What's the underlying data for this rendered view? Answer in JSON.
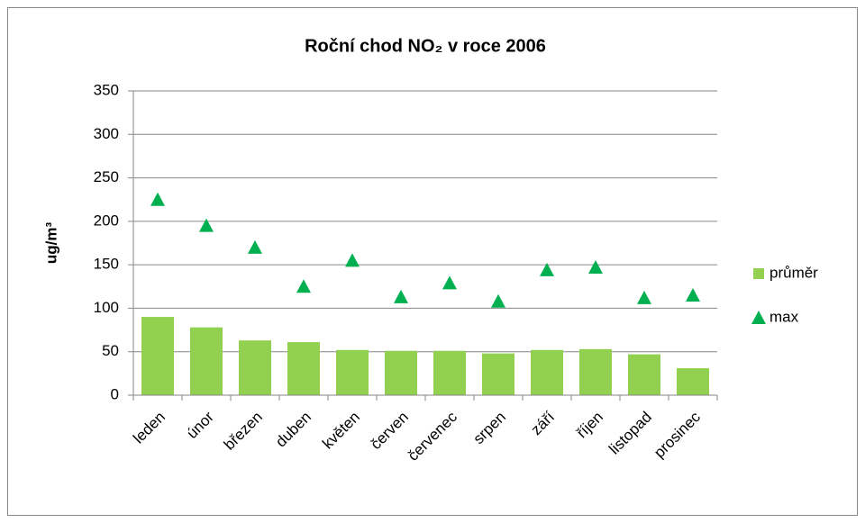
{
  "chart_data": {
    "type": "bar",
    "title": "Roční chod NO₂ v roce 2006",
    "y_label": "ug/m³",
    "categories": [
      "leden",
      "únor",
      "březen",
      "duben",
      "květen",
      "červen",
      "červenec",
      "srpen",
      "září",
      "říjen",
      "listopad",
      "prosinec"
    ],
    "series": [
      {
        "name": "průměr",
        "type": "bar",
        "color": "#92d050",
        "values": [
          90,
          78,
          63,
          61,
          52,
          51,
          51,
          48,
          52,
          53,
          47,
          31
        ]
      },
      {
        "name": "max",
        "type": "marker",
        "color": "#00b050",
        "values": [
          225,
          195,
          170,
          125,
          155,
          113,
          129,
          108,
          144,
          147,
          112,
          115
        ]
      }
    ],
    "ylim": [
      0,
      350
    ],
    "yticks": [
      0,
      50,
      100,
      150,
      200,
      250,
      300,
      350
    ],
    "grid": true,
    "legend": "right"
  }
}
